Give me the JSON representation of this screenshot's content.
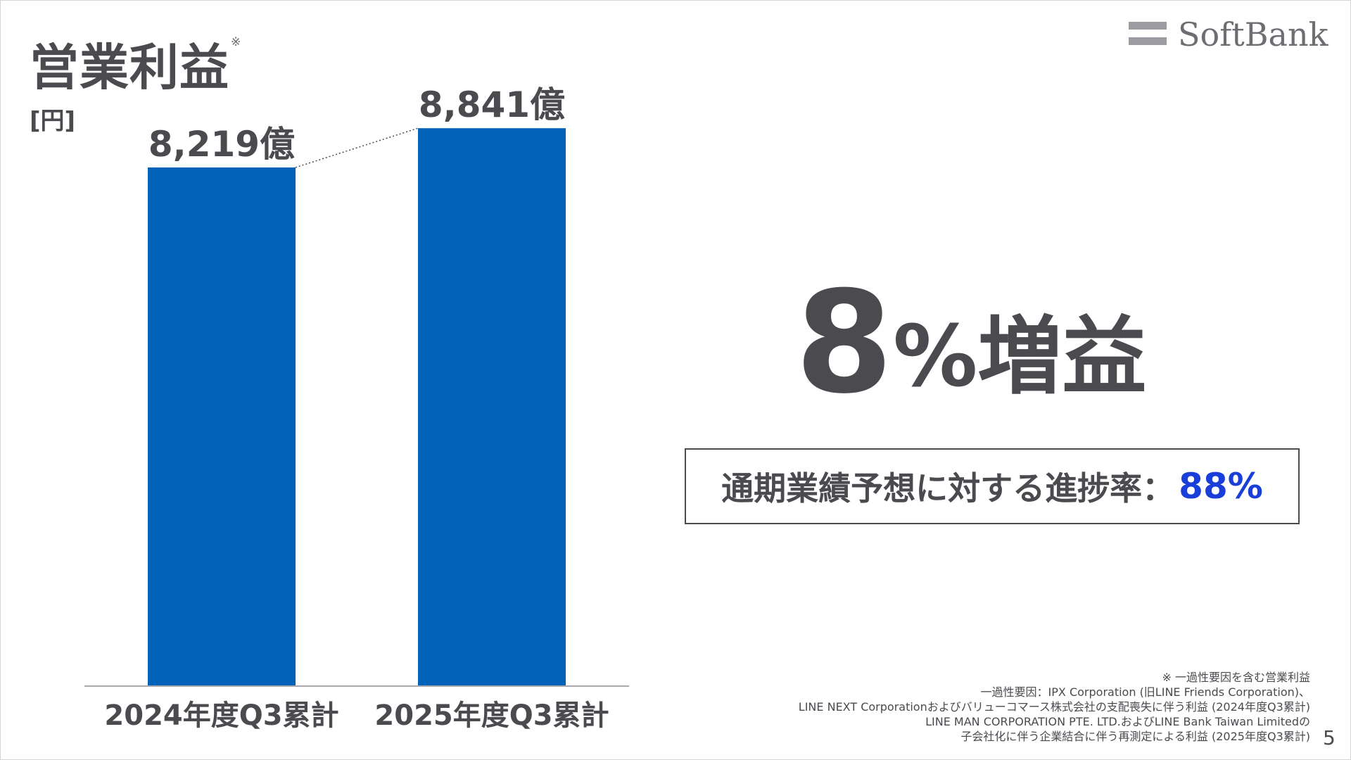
{
  "slide": {
    "title": "営業利益",
    "title_mark": "※",
    "unit": "[円]",
    "logo_text": "SoftBank",
    "page_number": "5"
  },
  "chart_data": {
    "type": "bar",
    "title": "営業利益",
    "ylabel": "[円]",
    "categories": [
      "2024年度Q3累計",
      "2025年度Q3累計"
    ],
    "values": [
      8219,
      8841
    ],
    "value_labels": [
      "8,219億",
      "8,841億"
    ],
    "ylim": [
      0,
      9200
    ],
    "bar_color": "#0062b8",
    "connector": "dotted",
    "grid": false
  },
  "headline": {
    "number": "8",
    "rest": "%増益"
  },
  "progress": {
    "label": "通期業績予想に対する進捗率：",
    "value": "88%",
    "value_color": "#1a3fd9"
  },
  "footnotes": [
    "※ 一過性要因を含む営業利益",
    "一過性要因：IPX Corporation (旧LINE Friends Corporation)、",
    "LINE NEXT Corporationおよびバリューコマース株式会社の支配喪失に伴う利益 (2024年度Q3累計)",
    "LINE MAN CORPORATION PTE. LTD.およびLINE Bank Taiwan Limitedの",
    "子会社化に伴う企業結合に伴う再測定による利益 (2025年度Q3累計)"
  ]
}
